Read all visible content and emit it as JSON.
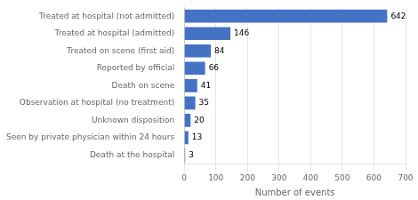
{
  "chart_data": {
    "type": "bar",
    "orientation": "horizontal",
    "categories": [
      "Death at the hospital",
      "Seen by private physician within 24 hours",
      "Unknown disposition",
      "Observation at hospital (no treatment)",
      "Death on scene",
      "Reported by official",
      "Treated on scene (first aid)",
      "Treated at hospital (admitted)",
      "Treated at hospital (not admitted)"
    ],
    "values": [
      3,
      13,
      20,
      35,
      41,
      66,
      84,
      146,
      642
    ],
    "color": "#4472C4",
    "xlabel": "Number of events",
    "xlim": [
      0,
      700
    ],
    "xticks": [
      0,
      100,
      200,
      300,
      400,
      500,
      600,
      700
    ],
    "grid": true,
    "data_labels": true
  }
}
